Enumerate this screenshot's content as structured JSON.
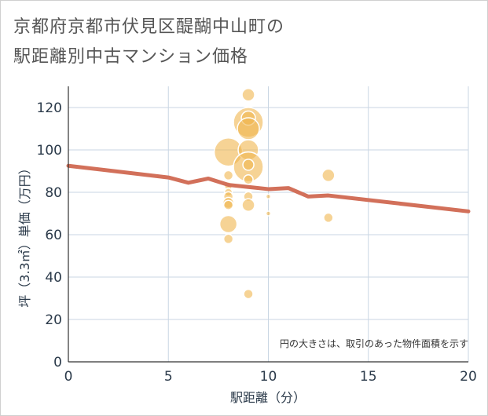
{
  "title_line1": "京都府京都市伏見区醍醐中山町の",
  "title_line2": "駅距離別中古マンション価格",
  "chart_data": {
    "type": "scatter",
    "xlabel": "駅距離（分）",
    "ylabel": "坪（3.3㎡）単価（万円）",
    "xlim": [
      0,
      20
    ],
    "ylim": [
      0,
      130
    ],
    "xticks": [
      0,
      5,
      10,
      15,
      20
    ],
    "yticks": [
      0,
      20,
      40,
      60,
      80,
      100,
      120
    ],
    "grid": true,
    "note": "円の大きさは、取引のあった物件面積を示す",
    "colors": {
      "bubble": "#f0b54f",
      "line": "#d2705a",
      "grid": "#c9d6e3"
    },
    "bubbles": [
      {
        "x": 8,
        "y": 99,
        "s": 18
      },
      {
        "x": 8,
        "y": 88,
        "s": 6
      },
      {
        "x": 8,
        "y": 83,
        "s": 5
      },
      {
        "x": 8,
        "y": 80,
        "s": 5
      },
      {
        "x": 8,
        "y": 78,
        "s": 6
      },
      {
        "x": 8,
        "y": 75,
        "s": 7
      },
      {
        "x": 8,
        "y": 74,
        "s": 6
      },
      {
        "x": 8,
        "y": 65,
        "s": 11
      },
      {
        "x": 8,
        "y": 58,
        "s": 6
      },
      {
        "x": 9,
        "y": 126,
        "s": 8
      },
      {
        "x": 9,
        "y": 113,
        "s": 19
      },
      {
        "x": 9,
        "y": 115,
        "s": 9
      },
      {
        "x": 9,
        "y": 110,
        "s": 14
      },
      {
        "x": 9,
        "y": 100,
        "s": 13
      },
      {
        "x": 9,
        "y": 92,
        "s": 19
      },
      {
        "x": 9,
        "y": 93,
        "s": 7
      },
      {
        "x": 9,
        "y": 86,
        "s": 6
      },
      {
        "x": 9,
        "y": 78,
        "s": 6
      },
      {
        "x": 9,
        "y": 74,
        "s": 8
      },
      {
        "x": 9,
        "y": 32,
        "s": 6
      },
      {
        "x": 10,
        "y": 78,
        "s": 3
      },
      {
        "x": 10,
        "y": 70,
        "s": 3
      },
      {
        "x": 13,
        "y": 88,
        "s": 8
      },
      {
        "x": 13,
        "y": 68,
        "s": 6
      }
    ],
    "line": {
      "x": [
        0,
        5,
        6,
        7,
        8,
        9,
        10,
        11,
        12,
        13,
        20
      ],
      "y": [
        92.5,
        87,
        84.5,
        86.5,
        83.5,
        82.5,
        81.5,
        82,
        78,
        78.5,
        71
      ]
    }
  }
}
